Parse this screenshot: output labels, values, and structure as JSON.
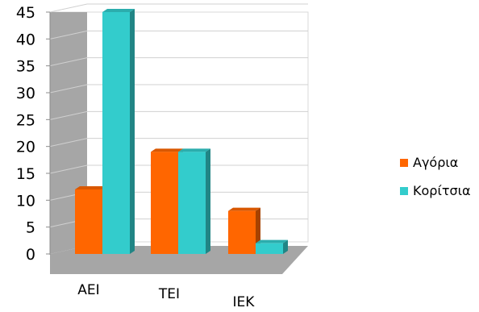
{
  "chart_data": {
    "type": "bar",
    "title": "",
    "xlabel": "",
    "ylabel": "",
    "categories": [
      "ΑΕΙ",
      "ΤΕΙ",
      "ΙΕΚ"
    ],
    "series": [
      {
        "name": "Αγόρια",
        "values": [
          12,
          19,
          8
        ],
        "color": "#ff6600"
      },
      {
        "name": "Κορίτσια",
        "values": [
          45,
          19,
          2
        ],
        "color": "#33cccc"
      }
    ],
    "ylim": [
      0,
      45
    ],
    "yticks": [
      "0",
      "5",
      "10",
      "15",
      "20",
      "25",
      "30",
      "35",
      "40",
      "45"
    ],
    "grid": true,
    "legend": "right",
    "style": "3d-clustered-column"
  }
}
